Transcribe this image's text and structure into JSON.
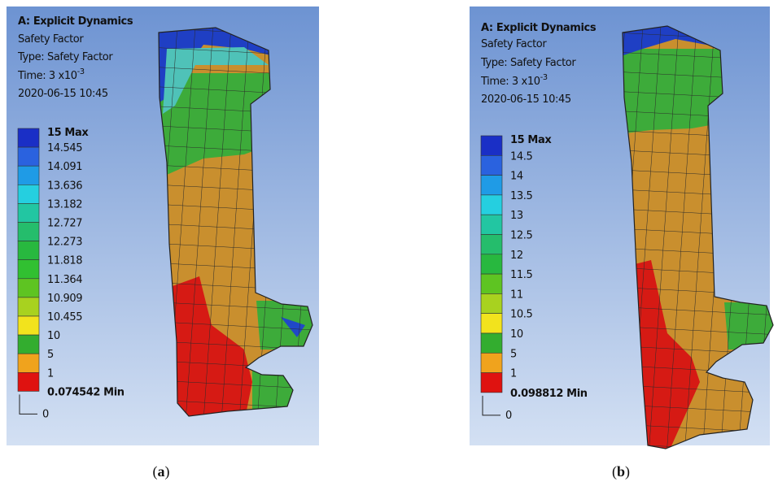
{
  "panels": [
    {
      "header": {
        "title": "A: Explicit Dynamics",
        "result": "Safety Factor",
        "type": "Type: Safety Factor",
        "time": "Time: 3 x10",
        "time_exponent": "-3",
        "date": "2020-06-15 10:45"
      },
      "legend": {
        "labels": [
          "15 Max",
          "14.545",
          "14.091",
          "13.636",
          "13.182",
          "12.727",
          "12.273",
          "11.818",
          "11.364",
          "10.909",
          "10.455",
          "10",
          "5",
          "1",
          "0.074542 Min"
        ],
        "zero": "0"
      },
      "caption": [
        "(",
        "a",
        ")"
      ]
    },
    {
      "header": {
        "title": "A: Explicit Dynamics",
        "result": "Safety Factor",
        "type": "Type: Safety Factor",
        "time": "Time: 3 x10",
        "time_exponent": "-3",
        "date": "2020-06-15 10:45"
      },
      "legend": {
        "labels": [
          "15 Max",
          "14.5",
          "14",
          "13.5",
          "13",
          "12.5",
          "12",
          "11.5",
          "11",
          "10.5",
          "10",
          "5",
          "1",
          "0.098812 Min"
        ],
        "zero": "0"
      },
      "caption": [
        "(",
        "b",
        ")"
      ]
    }
  ]
}
